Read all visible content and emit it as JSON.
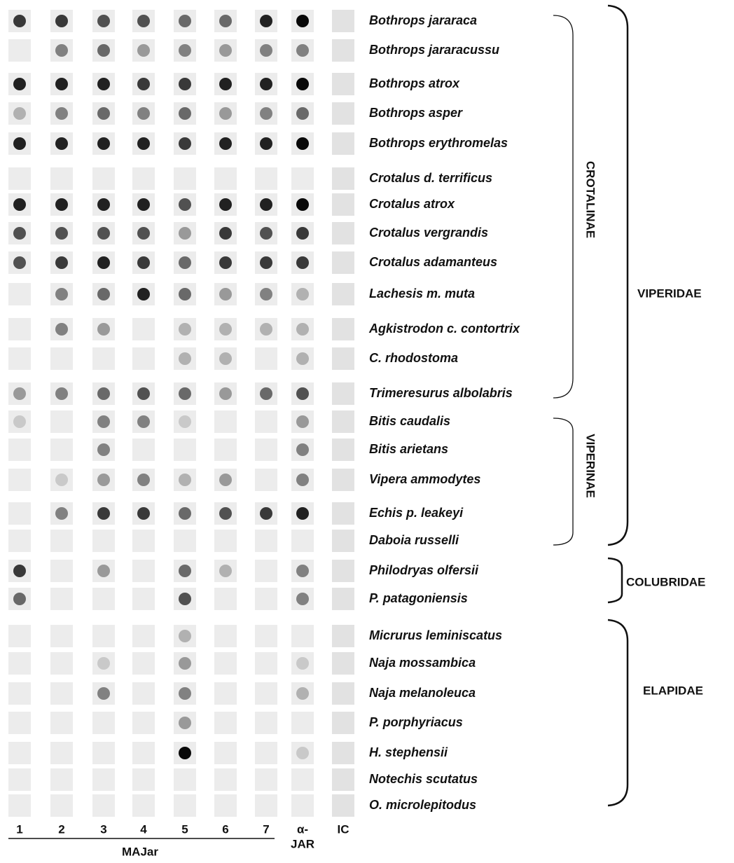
{
  "species": [
    "Bothrops jararaca",
    "Bothrops jararacussu",
    "Bothrops atrox",
    "Bothrops asper",
    "Bothrops erythromelas",
    "Crotalus d. terrificus",
    "Crotalus atrox",
    "Crotalus vergrandis",
    "Crotalus adamanteus",
    "Lachesis m. muta",
    "Agkistrodon c. contortrix",
    "C. rhodostoma",
    "Trimeresurus albolabris",
    "Bitis caudalis",
    "Bitis arietans",
    "Vipera ammodytes",
    "Echis p. leakeyi",
    "Daboia russelli",
    "Philodryas olfersii",
    "P. patagoniensis",
    "Micrurus leminiscatus",
    "Naja mossambica",
    "Naja melanoleuca",
    "P. porphyriacus",
    "H. stephensii",
    "Notechis scutatus",
    "O. microlepitodus"
  ],
  "columns": [
    "1",
    "2",
    "3",
    "4",
    "5",
    "6",
    "7",
    [
      "α-",
      "JAR"
    ],
    "IC"
  ],
  "column_group": "MAJar",
  "subfamilies": [
    "CROTALINAE",
    "VIPERINAE"
  ],
  "families": [
    "VIPERIDAE",
    "COLUBRIDAE",
    "ELAPIDAE"
  ]
}
